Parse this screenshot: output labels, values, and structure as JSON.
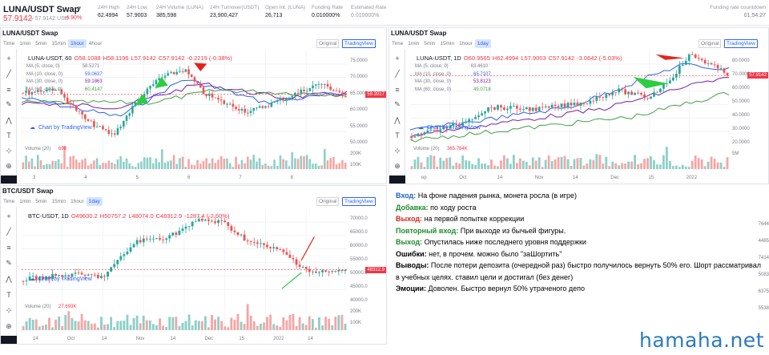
{
  "ticker": {
    "symbol": "LUNA/USDT Swap",
    "price": "57.9142",
    "price_sub": "≈ 57.9142 USD",
    "change": "-4.90%",
    "stats": [
      {
        "label": "24H High",
        "value": "62.4994"
      },
      {
        "label": "24H Low",
        "value": "57.9003"
      },
      {
        "label": "24H Volume (LUNA)",
        "value": "385,598"
      },
      {
        "label": "24H Turnover(USDT)",
        "value": "23,900,427"
      },
      {
        "label": "Open Int. (LUNA)",
        "value": "26,713"
      },
      {
        "label": "Funding Rate",
        "value": "0.010000%"
      },
      {
        "label": "Estimated Rate",
        "value": "0.010000%"
      }
    ],
    "countdown_label": "Funding rate countdown",
    "countdown_value": "01:54:27"
  },
  "panels": {
    "tl": {
      "title": "LUNA/USDT Swap",
      "timeframes": [
        "Time",
        "1min",
        "5min",
        "15min",
        "1hour",
        "4hour"
      ],
      "active_tf": "1hour",
      "original": "Original",
      "tradingview": "TradingView",
      "ohlc": {
        "sym": "LUNA-USDT, 60",
        "o": "O58.1088",
        "h": "H58.1196",
        "l": "L57.9142",
        "c": "C57.9142",
        "ch": "-0.2219 (-0.38%)"
      },
      "ma": [
        "MA (5, close, 0)",
        "MA (10, close, 0)",
        "MA (30, close, 0)",
        "MA (60, close, 0)"
      ],
      "ma_vals": [
        "58.5271",
        "59.0637",
        "59.1863",
        "60.4147"
      ],
      "watermark": "Chart by TradingView",
      "volume": "Volume (20)",
      "volume_val": "698",
      "price_axis": [
        "75.0000",
        "70.0000",
        "65.0000",
        "60.0000",
        "55.0000",
        "50.0000"
      ],
      "price_tag": "59.3917",
      "vol_axis": [
        "200K",
        "100K"
      ],
      "dates": [
        "3",
        "4",
        "5",
        "6",
        "7",
        "8"
      ]
    },
    "tr": {
      "title": "LUNA/USDT Swap",
      "timeframes": [
        "Time",
        "1min",
        "5min",
        "15min",
        "1hour",
        "1day"
      ],
      "active_tf": "1day",
      "original": "Original",
      "tradingview": "TradingView",
      "ohlc": {
        "sym": "LUNA-USDT, 1D",
        "o": "O60.9565",
        "h": "H62.4994",
        "l": "L57.9003",
        "c": "C57.9142",
        "ch": "-3.0642 (-5.03%)"
      },
      "ma": [
        "MA (5, close, 0)",
        "MA (10, close, 0)",
        "MA (30, close, 0)",
        "MA (60, close, 0)"
      ],
      "ma_vals": [
        "63.4610",
        "65.7107",
        "53.8123",
        "49.0718"
      ],
      "watermark": "Chart by TradingView",
      "volume": "Volume (20)",
      "volume_val": "365.784K",
      "price_axis": [
        "80.0000",
        "70.0000",
        "60.0000",
        "50.0000",
        "40.0000",
        "30.0000",
        "20.0000"
      ],
      "price_tag": "57.9142",
      "vol_axis": [
        "5M"
      ],
      "dates": [
        "ep",
        "Oct",
        "14",
        "Nov",
        "14",
        "Dec",
        "15",
        "2022"
      ]
    },
    "bl": {
      "title": "BTC/USDT Swap",
      "timeframes": [
        "Time",
        "1min",
        "5min",
        "15min",
        "1hour",
        "1day"
      ],
      "active_tf": "1day",
      "original": "Original",
      "tradingview": "TradingView",
      "ohlc": {
        "sym": "BTC-USDT, 1D",
        "o": "O49600.2",
        "h": "H50757.2",
        "l": "L48074.0",
        "c": "C48312.9",
        "ch": "-1287.4 (-2.60%)"
      },
      "watermark": "Chart by TradingView",
      "volume": "Volume (20)",
      "volume_val": "27.693K",
      "price_axis": [
        "70000.0",
        "65000.0",
        "60000.0",
        "55000.0",
        "50000.0",
        "45000.0",
        "40000.0"
      ],
      "price_tag": "48312.9",
      "vol_axis": [
        "200K",
        "100K"
      ],
      "dates": [
        "14",
        "Oct",
        "14",
        "Nov",
        "14",
        "Dec",
        "15",
        "2022",
        "14"
      ]
    }
  },
  "notes": [
    {
      "key": "Вход:",
      "cls": "k-blue",
      "text": " На фоне падения рынка, монета росла (в игре)"
    },
    {
      "key": "Добавка:",
      "cls": "k-green",
      "text": " по ходу роста"
    },
    {
      "key": "Выход:",
      "cls": "k-red",
      "text": " на первой попытке коррекции"
    },
    {
      "key": "Повторный вход:",
      "cls": "k-green",
      "text": " При выходе из бычьей фигуры."
    },
    {
      "key": "Выход:",
      "cls": "k-green",
      "text": " Опустилась ниже последнего уровня поддержки"
    },
    {
      "key": "Ошибки:",
      "cls": "k-black",
      "text": " нет, в прочем. можно было \"заШортить\""
    },
    {
      "key": "Выводы:",
      "cls": "k-black",
      "text": " После потери депозита (очередной раз) быстро получилось вернуть 50% его. Шорт рассматривал в учебных целях. ставил цели и достигал (без денег)"
    },
    {
      "key": "Эмоции:",
      "cls": "k-black",
      "text": " Доволен. Быстро вернул 50% утраченого депо"
    }
  ],
  "right_strip": [
    "7644",
    "4485",
    "7414",
    "5083",
    "6375",
    "5538"
  ],
  "brand": "hamaha.net",
  "colors": {
    "up": "#26a69a",
    "down": "#ef5350",
    "accent": "#2962ff"
  }
}
